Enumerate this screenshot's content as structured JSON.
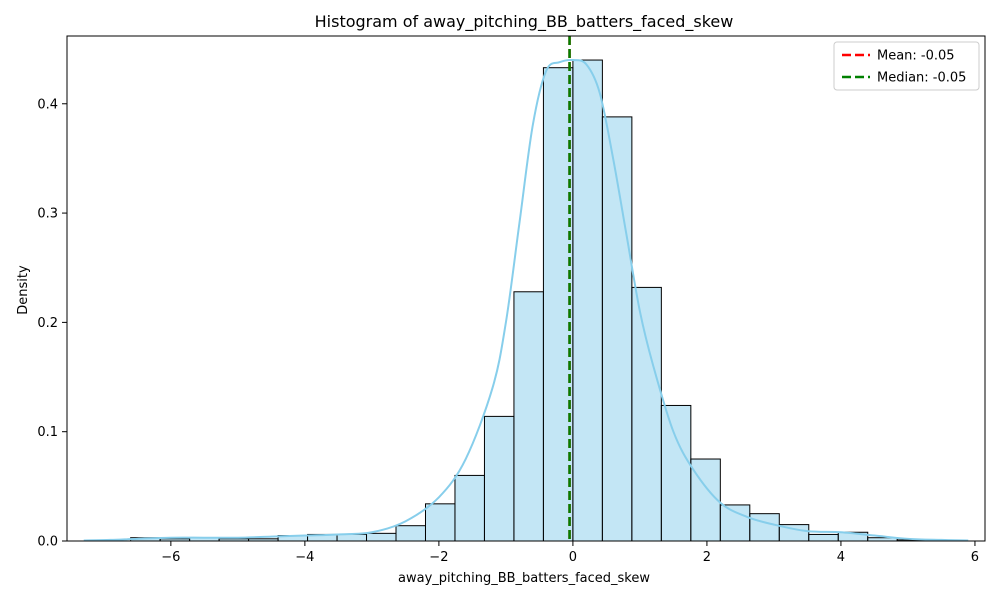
{
  "chart_data": {
    "type": "bar",
    "title": "Histogram of away_pitching_BB_batters_faced_skew",
    "xlabel": "away_pitching_BB_batters_faced_skew",
    "ylabel": "Density",
    "xlim": [
      -7.55,
      6.15
    ],
    "ylim": [
      0,
      0.462
    ],
    "xticks": [
      -6,
      -4,
      -2,
      0,
      2,
      4,
      6
    ],
    "xtick_labels": [
      "−6",
      "−4",
      "−2",
      "0",
      "2",
      "4",
      "6"
    ],
    "yticks": [
      0.0,
      0.1,
      0.2,
      0.3,
      0.4
    ],
    "ytick_labels": [
      "0.0",
      "0.1",
      "0.2",
      "0.3",
      "0.4"
    ],
    "grid": false,
    "bar_color": "#87ceeb",
    "kde_color": "#87ceeb",
    "bins": [
      {
        "x0": -6.6,
        "x1": -6.16,
        "density": 0.003
      },
      {
        "x0": -6.16,
        "x1": -5.72,
        "density": 0.002
      },
      {
        "x0": -5.72,
        "x1": -5.28,
        "density": 0.003
      },
      {
        "x0": -5.28,
        "x1": -4.84,
        "density": 0.002
      },
      {
        "x0": -4.84,
        "x1": -4.4,
        "density": 0.002
      },
      {
        "x0": -4.4,
        "x1": -3.96,
        "density": 0.005
      },
      {
        "x0": -3.96,
        "x1": -3.52,
        "density": 0.006
      },
      {
        "x0": -3.52,
        "x1": -3.08,
        "density": 0.006
      },
      {
        "x0": -3.08,
        "x1": -2.64,
        "density": 0.007
      },
      {
        "x0": -2.64,
        "x1": -2.2,
        "density": 0.014
      },
      {
        "x0": -2.2,
        "x1": -1.76,
        "density": 0.034
      },
      {
        "x0": -1.76,
        "x1": -1.32,
        "density": 0.06
      },
      {
        "x0": -1.32,
        "x1": -0.88,
        "density": 0.114
      },
      {
        "x0": -0.88,
        "x1": -0.44,
        "density": 0.228
      },
      {
        "x0": -0.44,
        "x1": 0.0,
        "density": 0.433
      },
      {
        "x0": 0.0,
        "x1": 0.44,
        "density": 0.44
      },
      {
        "x0": 0.44,
        "x1": 0.88,
        "density": 0.388
      },
      {
        "x0": 0.88,
        "x1": 1.32,
        "density": 0.232
      },
      {
        "x0": 1.32,
        "x1": 1.76,
        "density": 0.124
      },
      {
        "x0": 1.76,
        "x1": 2.2,
        "density": 0.075
      },
      {
        "x0": 2.2,
        "x1": 2.64,
        "density": 0.033
      },
      {
        "x0": 2.64,
        "x1": 3.08,
        "density": 0.025
      },
      {
        "x0": 3.08,
        "x1": 3.52,
        "density": 0.015
      },
      {
        "x0": 3.52,
        "x1": 3.96,
        "density": 0.006
      },
      {
        "x0": 3.96,
        "x1": 4.4,
        "density": 0.008
      },
      {
        "x0": 4.4,
        "x1": 4.84,
        "density": 0.003
      },
      {
        "x0": 4.84,
        "x1": 5.28,
        "density": 0.001
      }
    ],
    "kde": {
      "x": [
        -7.3,
        -6.9,
        -6.5,
        -6.0,
        -5.5,
        -5.0,
        -4.5,
        -4.0,
        -3.5,
        -3.0,
        -2.5,
        -2.0,
        -1.6,
        -1.2,
        -1.0,
        -0.8,
        -0.6,
        -0.4,
        -0.2,
        0.0,
        0.2,
        0.4,
        0.6,
        0.8,
        1.0,
        1.2,
        1.5,
        1.8,
        2.2,
        2.6,
        3.0,
        3.5,
        4.0,
        4.5,
        5.0,
        5.5,
        5.9
      ],
      "y": [
        0.0005,
        0.001,
        0.002,
        0.003,
        0.003,
        0.003,
        0.004,
        0.005,
        0.006,
        0.008,
        0.018,
        0.04,
        0.075,
        0.14,
        0.2,
        0.29,
        0.38,
        0.43,
        0.438,
        0.44,
        0.436,
        0.41,
        0.35,
        0.28,
        0.21,
        0.16,
        0.1,
        0.065,
        0.035,
        0.022,
        0.015,
        0.009,
        0.008,
        0.005,
        0.002,
        0.001,
        0.0005
      ]
    },
    "lines": [
      {
        "name": "Mean: -0.05",
        "x": -0.05,
        "color": "#ff0000",
        "style": "dashed"
      },
      {
        "name": "Median: -0.05",
        "x": -0.05,
        "color": "#008000",
        "style": "dashed"
      }
    ],
    "legend_position": "top-right"
  }
}
